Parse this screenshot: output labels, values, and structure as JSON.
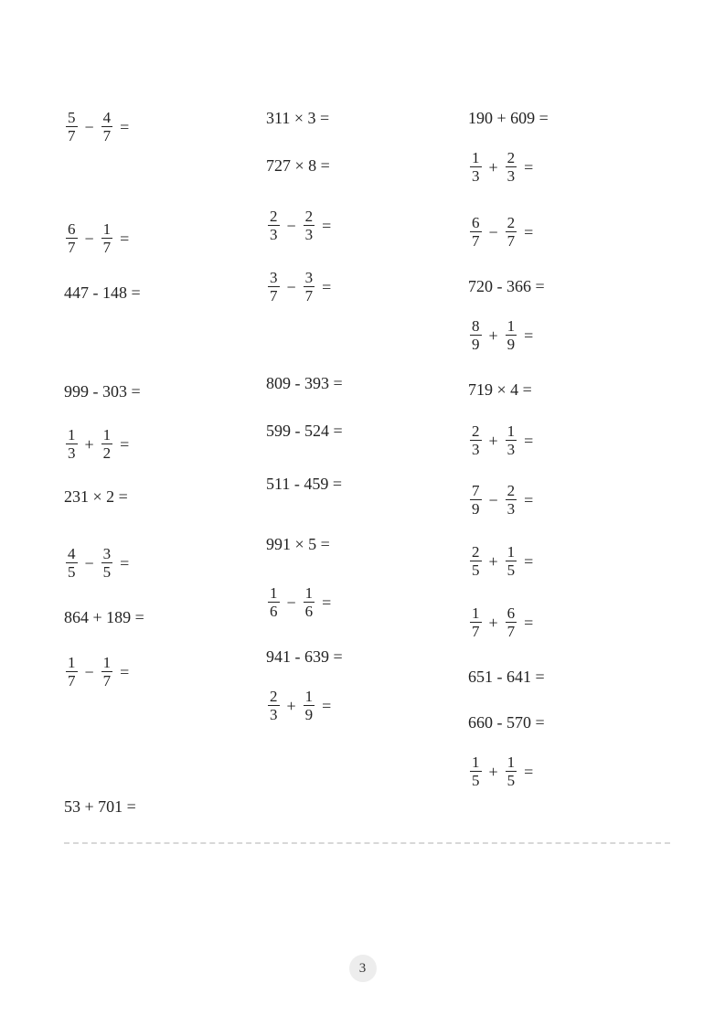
{
  "page_number": "3",
  "layout": {
    "columns": 3,
    "font_family": "Times New Roman",
    "text_color": "#222222",
    "background_color": "#ffffff",
    "separator_color": "#d8d8d8"
  },
  "columns": [
    [
      {
        "type": "frac",
        "a_num": "5",
        "a_den": "7",
        "op": "−",
        "b_num": "4",
        "b_den": "7",
        "gap_after": 85
      },
      {
        "type": "frac",
        "a_num": "6",
        "a_den": "7",
        "op": "−",
        "b_num": "1",
        "b_den": "7",
        "gap_after": 32
      },
      {
        "type": "plain",
        "text": "447 - 148 =",
        "gap_after": 90
      },
      {
        "type": "plain",
        "text": "999 - 303 =",
        "gap_after": 30
      },
      {
        "type": "frac",
        "a_num": "1",
        "a_den": "3",
        "op": "+",
        "b_num": "1",
        "b_den": "2",
        "gap_after": 30
      },
      {
        "type": "plain",
        "text": "231 × 2 =",
        "gap_after": 45
      },
      {
        "type": "frac",
        "a_num": "4",
        "a_den": "5",
        "op": "−",
        "b_num": "3",
        "b_den": "5",
        "gap_after": 32
      },
      {
        "type": "plain",
        "text": "864 + 189 =",
        "gap_after": 32
      },
      {
        "type": "frac",
        "a_num": "1",
        "a_den": "7",
        "op": "−",
        "b_num": "1",
        "b_den": "7",
        "gap_after": 120
      },
      {
        "type": "plain",
        "text": "53 + 701 =",
        "gap_after": 0
      }
    ],
    [
      {
        "type": "plain",
        "text": "311 × 3 =",
        "gap_after": 34
      },
      {
        "type": "plain",
        "text": "727 × 8 =",
        "gap_after": 38
      },
      {
        "type": "frac",
        "a_num": "2",
        "a_den": "3",
        "op": "−",
        "b_num": "2",
        "b_den": "3",
        "gap_after": 30
      },
      {
        "type": "frac",
        "a_num": "3",
        "a_den": "7",
        "op": "−",
        "b_num": "3",
        "b_den": "7",
        "gap_after": 78
      },
      {
        "type": "plain",
        "text": "809 - 393 =",
        "gap_after": 34
      },
      {
        "type": "plain",
        "text": "599 - 524 =",
        "gap_after": 40
      },
      {
        "type": "plain",
        "text": "511 - 459 =",
        "gap_after": 48
      },
      {
        "type": "plain",
        "text": "991 × 5 =",
        "gap_after": 36
      },
      {
        "type": "frac",
        "a_num": "1",
        "a_den": "6",
        "op": "−",
        "b_num": "1",
        "b_den": "6",
        "gap_after": 32
      },
      {
        "type": "plain",
        "text": "941 - 639 =",
        "gap_after": 26
      },
      {
        "type": "frac",
        "a_num": "2",
        "a_den": "3",
        "op": "+",
        "b_num": "1",
        "b_den": "9",
        "gap_after": 0
      }
    ],
    [
      {
        "type": "plain",
        "text": "190 + 609 =",
        "gap_after": 26
      },
      {
        "type": "frac",
        "a_num": "1",
        "a_den": "3",
        "op": "+",
        "b_num": "2",
        "b_den": "3",
        "gap_after": 34
      },
      {
        "type": "frac",
        "a_num": "6",
        "a_den": "7",
        "op": "−",
        "b_num": "2",
        "b_den": "7",
        "gap_after": 32
      },
      {
        "type": "plain",
        "text": "720 - 366 =",
        "gap_after": 26
      },
      {
        "type": "frac",
        "a_num": "8",
        "a_den": "9",
        "op": "+",
        "b_num": "1",
        "b_den": "9",
        "gap_after": 32
      },
      {
        "type": "plain",
        "text": "719 × 4 =",
        "gap_after": 28
      },
      {
        "type": "frac",
        "a_num": "2",
        "a_den": "3",
        "op": "+",
        "b_num": "1",
        "b_den": "3",
        "gap_after": 28
      },
      {
        "type": "frac",
        "a_num": "7",
        "a_den": "9",
        "op": "−",
        "b_num": "2",
        "b_den": "3",
        "gap_after": 30
      },
      {
        "type": "frac",
        "a_num": "2",
        "a_den": "5",
        "op": "+",
        "b_num": "1",
        "b_den": "5",
        "gap_after": 30
      },
      {
        "type": "frac",
        "a_num": "1",
        "a_den": "7",
        "op": "+",
        "b_num": "6",
        "b_den": "7",
        "gap_after": 32
      },
      {
        "type": "plain",
        "text": "651 - 641 =",
        "gap_after": 32
      },
      {
        "type": "plain",
        "text": "660 - 570 =",
        "gap_after": 26
      },
      {
        "type": "frac",
        "a_num": "1",
        "a_den": "5",
        "op": "+",
        "b_num": "1",
        "b_den": "5",
        "gap_after": 0
      }
    ]
  ]
}
